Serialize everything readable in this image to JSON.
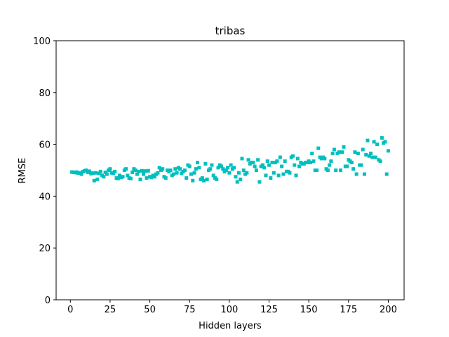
{
  "chart_data": {
    "type": "scatter",
    "title": "tribas",
    "xlabel": "Hidden layers",
    "ylabel": "RMSE",
    "x": [
      1,
      2,
      3,
      4,
      5,
      6,
      7,
      8,
      9,
      10,
      11,
      12,
      13,
      14,
      15,
      16,
      17,
      18,
      19,
      20,
      21,
      22,
      23,
      24,
      25,
      26,
      27,
      28,
      29,
      30,
      31,
      32,
      33,
      34,
      35,
      36,
      37,
      38,
      39,
      40,
      41,
      42,
      43,
      44,
      45,
      46,
      47,
      48,
      49,
      50,
      51,
      52,
      53,
      54,
      55,
      56,
      57,
      58,
      59,
      60,
      61,
      62,
      63,
      64,
      65,
      66,
      67,
      68,
      69,
      70,
      71,
      72,
      73,
      74,
      75,
      76,
      77,
      78,
      79,
      80,
      81,
      82,
      83,
      84,
      85,
      86,
      87,
      88,
      89,
      90,
      91,
      92,
      93,
      94,
      95,
      96,
      97,
      98,
      99,
      100,
      101,
      102,
      103,
      104,
      105,
      106,
      107,
      108,
      109,
      110,
      111,
      112,
      113,
      114,
      115,
      116,
      117,
      118,
      119,
      120,
      121,
      122,
      123,
      124,
      125,
      126,
      127,
      128,
      129,
      130,
      131,
      132,
      133,
      134,
      135,
      136,
      137,
      138,
      139,
      140,
      141,
      142,
      143,
      144,
      145,
      146,
      147,
      148,
      149,
      150,
      151,
      152,
      153,
      154,
      155,
      156,
      157,
      158,
      159,
      160,
      161,
      162,
      163,
      164,
      165,
      166,
      167,
      168,
      169,
      170,
      171,
      172,
      173,
      174,
      175,
      176,
      177,
      178,
      179,
      180,
      181,
      182,
      183,
      184,
      185,
      186,
      187,
      188,
      189,
      190,
      191,
      192,
      193,
      194,
      195,
      196,
      197,
      198,
      199,
      200
    ],
    "values": [
      49.3,
      49.2,
      49.1,
      49.3,
      48.9,
      49.0,
      48.5,
      49.5,
      49.8,
      50.0,
      49.2,
      49.6,
      48.7,
      48.9,
      46.0,
      49.0,
      46.5,
      48.8,
      49.5,
      48.0,
      47.5,
      49.2,
      48.5,
      50.0,
      50.5,
      49.0,
      48.8,
      49.5,
      47.0,
      46.8,
      48.0,
      47.2,
      47.5,
      50.0,
      50.5,
      48.0,
      47.0,
      46.8,
      49.2,
      50.5,
      50.0,
      48.5,
      49.5,
      46.5,
      49.8,
      48.5,
      49.7,
      47.0,
      49.8,
      47.5,
      47.2,
      48.0,
      47.5,
      48.5,
      49.0,
      51.0,
      50.0,
      50.5,
      47.5,
      47.0,
      50.0,
      49.5,
      50.0,
      48.0,
      48.5,
      50.5,
      49.0,
      51.0,
      50.5,
      48.8,
      49.5,
      50.0,
      47.0,
      52.0,
      51.5,
      48.5,
      46.0,
      49.0,
      50.5,
      53.0,
      51.0,
      46.5,
      47.0,
      46.0,
      52.5,
      46.5,
      50.0,
      50.5,
      52.0,
      48.0,
      47.0,
      46.5,
      51.0,
      52.0,
      51.5,
      50.5,
      49.5,
      50.0,
      51.0,
      49.0,
      52.0,
      50.5,
      51.0,
      47.5,
      45.5,
      49.0,
      46.5,
      54.5,
      50.0,
      48.5,
      49.0,
      54.0,
      52.5,
      53.0,
      53.0,
      51.5,
      50.0,
      54.0,
      45.5,
      51.5,
      52.0,
      51.0,
      48.0,
      53.5,
      52.0,
      47.0,
      53.0,
      49.0,
      53.0,
      53.5,
      48.0,
      55.0,
      51.5,
      48.5,
      53.5,
      49.5,
      49.5,
      49.0,
      55.0,
      55.5,
      52.0,
      48.0,
      54.5,
      51.5,
      53.0,
      52.5,
      52.5,
      53.0,
      53.0,
      53.5,
      53.0,
      56.5,
      53.5,
      50.0,
      50.0,
      58.5,
      55.0,
      54.5,
      55.0,
      54.5,
      50.5,
      50.0,
      52.0,
      53.5,
      56.5,
      58.0,
      50.0,
      56.5,
      57.0,
      50.0,
      57.0,
      59.0,
      51.5,
      51.5,
      54.0,
      53.5,
      53.0,
      50.5,
      57.0,
      48.5,
      56.5,
      52.0,
      52.0,
      58.0,
      48.5,
      56.0,
      61.5,
      55.5,
      56.5,
      55.0,
      61.0,
      55.0,
      60.0,
      54.0,
      53.5,
      62.5,
      60.5,
      61.0,
      48.5,
      57.5
    ],
    "color": "#00bfbf",
    "marker": "square",
    "xlim": [
      -8.95,
      209.95
    ],
    "xticks": [
      0,
      25,
      50,
      75,
      100,
      125,
      150,
      175,
      200
    ],
    "ylim": [
      0,
      100
    ],
    "yticks": [
      0,
      20,
      40,
      60,
      80,
      100
    ]
  }
}
